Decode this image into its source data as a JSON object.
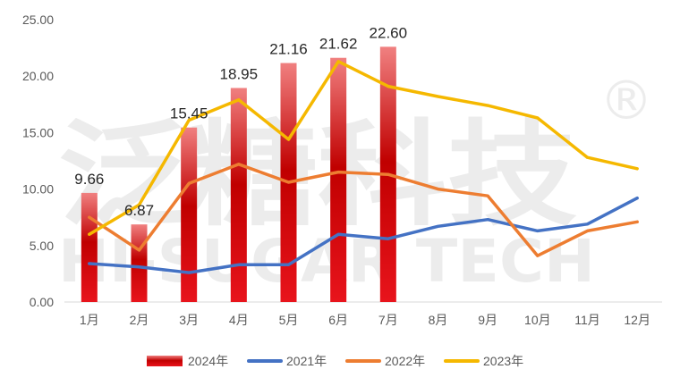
{
  "chart_data": {
    "type": "bar+line",
    "categories": [
      "1月",
      "2月",
      "3月",
      "4月",
      "5月",
      "6月",
      "7月",
      "8月",
      "9月",
      "10月",
      "11月",
      "12月"
    ],
    "ylim": [
      0,
      25
    ],
    "yticks": [
      "0.00",
      "5.00",
      "10.00",
      "15.00",
      "20.00",
      "25.00"
    ],
    "grid": false,
    "legend_position": "bottom",
    "bar_series": {
      "name": "2024年",
      "values": [
        9.66,
        6.87,
        15.45,
        18.95,
        21.16,
        21.62,
        22.6
      ],
      "labels": [
        "9.66",
        "6.87",
        "15.45",
        "18.95",
        "21.16",
        "21.62",
        "22.60"
      ],
      "color_top": "#f08080",
      "color_mid": "#c00000",
      "color_bottom": "#e8141c"
    },
    "line_series": [
      {
        "name": "2021年",
        "color": "#4472c4",
        "values": [
          3.4,
          3.1,
          2.6,
          3.3,
          3.3,
          6.0,
          5.6,
          6.7,
          7.3,
          6.3,
          6.9,
          9.2
        ]
      },
      {
        "name": "2022年",
        "color": "#ed7d31",
        "values": [
          7.5,
          4.6,
          10.5,
          12.2,
          10.6,
          11.5,
          11.3,
          10.0,
          9.4,
          4.1,
          6.3,
          7.1
        ]
      },
      {
        "name": "2023年",
        "color": "#f5b800",
        "values": [
          6.0,
          8.6,
          16.1,
          17.9,
          14.4,
          21.3,
          19.1,
          18.2,
          17.4,
          16.3,
          12.8,
          11.8
        ]
      }
    ]
  },
  "watermark": {
    "main": "泛糖科技",
    "sub": "HI-SUGAR TECH",
    "mark": "®"
  }
}
